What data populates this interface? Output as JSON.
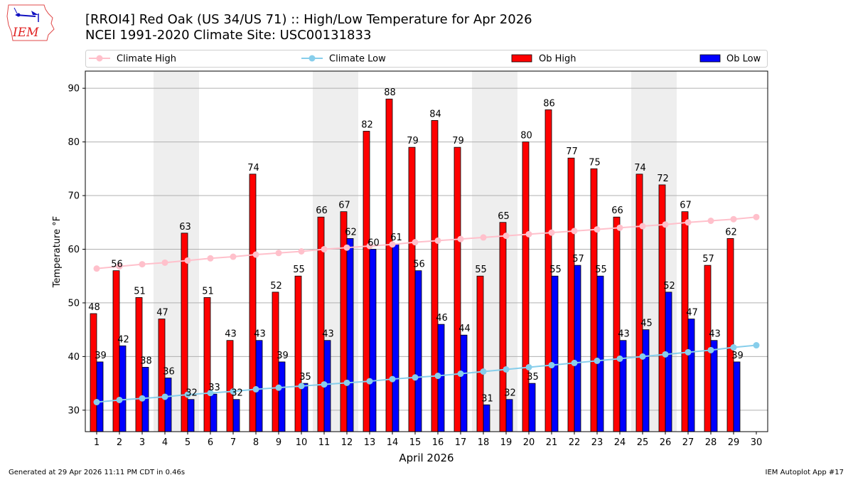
{
  "header": {
    "title_line1": "[RROI4] Red Oak (US 34/US 71) :: High/Low Temperature for Apr 2026",
    "title_line2": "NCEI 1991-2020 Climate Site: USC00131833",
    "logo_text": "IEM"
  },
  "footer": {
    "generated": "Generated at 29 Apr 2026 11:11 PM CDT in 0.46s",
    "app": "IEM Autoplot App #17"
  },
  "colors": {
    "ob_high": "#ff0000",
    "ob_low": "#0000ff",
    "climate_high": "#ffc0cb",
    "climate_low": "#87ceeb",
    "weekend_shade": "#eeeeee",
    "grid": "#b0b0b0"
  },
  "chart_data": {
    "type": "bar",
    "title": "[RROI4] Red Oak (US 34/US 71) :: High/Low Temperature for Apr 2026",
    "subtitle": "NCEI 1991-2020 Climate Site: USC00131833",
    "xlabel": "April 2026",
    "ylabel": "Temperature °F",
    "ylim": [
      26,
      93.2
    ],
    "xlim": [
      0.5,
      30.5
    ],
    "yticks": [
      30,
      40,
      50,
      60,
      70,
      80,
      90
    ],
    "grid": "horizontal",
    "legend_position": "top",
    "categories": [
      1,
      2,
      3,
      4,
      5,
      6,
      7,
      8,
      9,
      10,
      11,
      12,
      13,
      14,
      15,
      16,
      17,
      18,
      19,
      20,
      21,
      22,
      23,
      24,
      25,
      26,
      27,
      28,
      29,
      30
    ],
    "weekend_spans": [
      [
        4,
        5
      ],
      [
        11,
        12
      ],
      [
        18,
        19
      ],
      [
        25,
        26
      ]
    ],
    "series": [
      {
        "name": "Ob High",
        "kind": "bar",
        "values": [
          48,
          56,
          51,
          47,
          63,
          51,
          43,
          74,
          52,
          55,
          66,
          67,
          82,
          88,
          79,
          84,
          79,
          55,
          65,
          80,
          86,
          77,
          75,
          66,
          74,
          72,
          67,
          57,
          62,
          null
        ]
      },
      {
        "name": "Ob Low",
        "kind": "bar",
        "values": [
          39,
          42,
          38,
          36,
          32,
          33,
          32,
          43,
          39,
          35,
          43,
          62,
          60,
          61,
          56,
          46,
          44,
          31,
          32,
          35,
          55,
          57,
          55,
          43,
          45,
          52,
          47,
          43,
          39,
          null
        ]
      },
      {
        "name": "Climate High",
        "kind": "line",
        "values": [
          56.4,
          56.8,
          57.2,
          57.5,
          57.9,
          58.3,
          58.6,
          59.0,
          59.3,
          59.6,
          60.0,
          60.3,
          60.6,
          60.9,
          61.3,
          61.6,
          61.9,
          62.2,
          62.5,
          62.8,
          63.1,
          63.4,
          63.7,
          64.0,
          64.3,
          64.6,
          65.0,
          65.3,
          65.6,
          66.0
        ]
      },
      {
        "name": "Climate Low",
        "kind": "line",
        "values": [
          31.5,
          31.9,
          32.2,
          32.5,
          32.9,
          33.2,
          33.5,
          33.9,
          34.2,
          34.5,
          34.8,
          35.1,
          35.4,
          35.8,
          36.1,
          36.4,
          36.8,
          37.2,
          37.6,
          38.0,
          38.4,
          38.8,
          39.2,
          39.6,
          40.0,
          40.4,
          40.8,
          41.2,
          41.7,
          42.1
        ]
      }
    ]
  }
}
